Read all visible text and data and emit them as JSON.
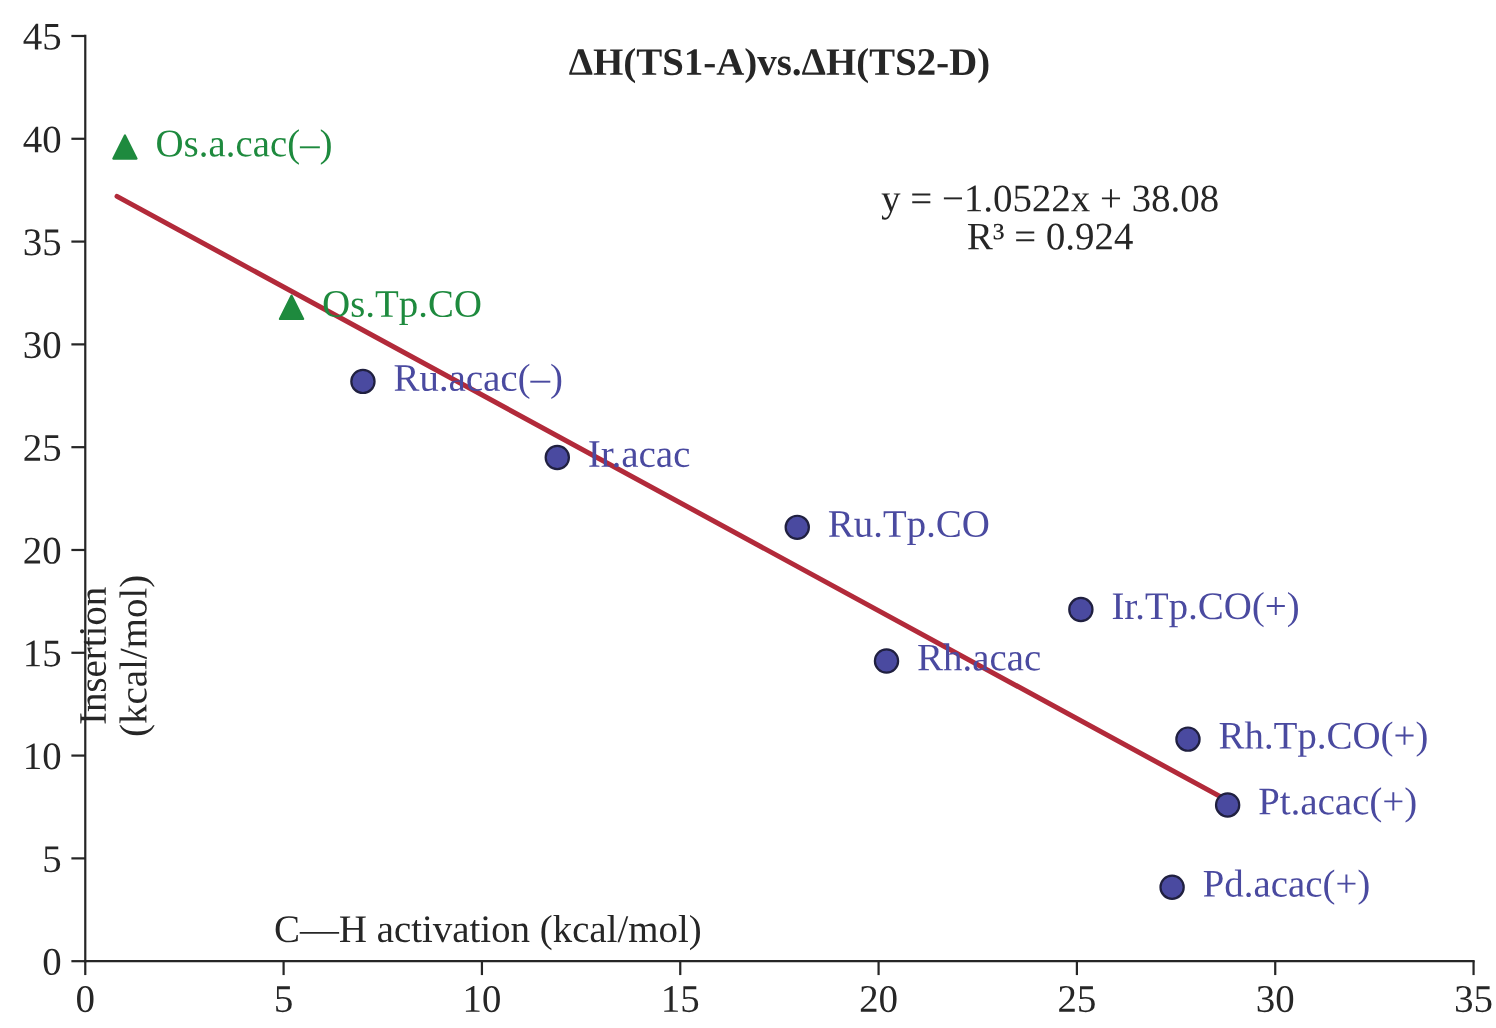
{
  "chart_data": {
    "type": "scatter",
    "title": "ΔH(TS1-A)vs.ΔH(TS2-D)",
    "xlabel": "C—H activation (kcal/mol)",
    "ylabel": "Insertion\n(kcal/mol)",
    "series": [
      {
        "marker": "triangle",
        "color": "#1e8a3e",
        "x": [
          1.0,
          5.2
        ],
        "values": [
          39.6,
          31.8
        ]
      },
      {
        "marker": "circle",
        "color": "#4a4aa0",
        "x": [
          7.0,
          11.9,
          17.95,
          25.1,
          20.2,
          27.8,
          28.8,
          27.4
        ],
        "values": [
          28.2,
          24.5,
          21.1,
          17.1,
          14.6,
          10.8,
          7.6,
          3.6
        ]
      },
      {
        "type": "line",
        "color": "#b22a3a",
        "x": [
          0.8,
          29.0
        ],
        "values": [
          37.2,
          7.6
        ]
      }
    ],
    "annotations": [
      {
        "text": "Os.a.cac(–)",
        "x": 1.0,
        "y": 39.6
      },
      {
        "text": "Os.Tp.CO",
        "x": 5.2,
        "y": 31.8
      },
      {
        "text": "Ru.acac(–)",
        "x": 7.0,
        "y": 28.2
      },
      {
        "text": "Ir.acac",
        "x": 11.9,
        "y": 24.5
      },
      {
        "text": "Ru.Tp.CO",
        "x": 17.95,
        "y": 21.1
      },
      {
        "text": "Ir.Tp.CO(+)",
        "x": 25.1,
        "y": 17.1
      },
      {
        "text": "Rh.acac",
        "x": 20.2,
        "y": 14.6
      },
      {
        "text": "Rh.Tp.CO(+)",
        "x": 27.8,
        "y": 10.8
      },
      {
        "text": "Pt.acac(+)",
        "x": 28.8,
        "y": 7.6
      },
      {
        "text": "Pd.acac(+)",
        "x": 27.4,
        "y": 3.6
      },
      "y = −1.0522x + 38.08\nR³ = 0.924"
    ],
    "xlim": [
      0,
      35
    ],
    "xticks": [
      0,
      5,
      10,
      15,
      20,
      25,
      30,
      35
    ],
    "ylim": [
      0,
      45
    ],
    "yticks": [
      0,
      5,
      10,
      15,
      20,
      25,
      30,
      35,
      40,
      45
    ],
    "grid": false,
    "legend": false
  }
}
